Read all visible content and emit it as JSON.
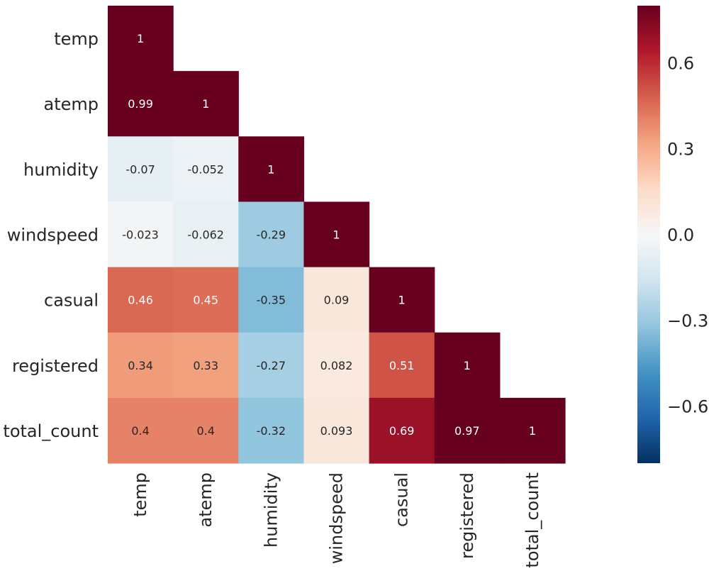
{
  "chart_data": {
    "type": "heatmap",
    "title": "",
    "rows": [
      "temp",
      "atemp",
      "humidity",
      "windspeed",
      "casual",
      "registered",
      "total_count"
    ],
    "columns": [
      "temp",
      "atemp",
      "humidity",
      "windspeed",
      "casual",
      "registered",
      "total_count"
    ],
    "mask": "upper-triangle",
    "values": [
      [
        1
      ],
      [
        0.99,
        1
      ],
      [
        -0.07,
        -0.052,
        1
      ],
      [
        -0.023,
        -0.062,
        -0.29,
        1
      ],
      [
        0.46,
        0.45,
        -0.35,
        0.09,
        1
      ],
      [
        0.34,
        0.33,
        -0.27,
        0.082,
        0.51,
        1
      ],
      [
        0.4,
        0.4,
        -0.32,
        0.093,
        0.69,
        0.97,
        1
      ]
    ],
    "labels": [
      [
        "1"
      ],
      [
        "0.99",
        "1"
      ],
      [
        "-0.07",
        "-0.052",
        "1"
      ],
      [
        "-0.023",
        "-0.062",
        "-0.29",
        "1"
      ],
      [
        "0.46",
        "0.45",
        "-0.35",
        "0.09",
        "1"
      ],
      [
        "0.34",
        "0.33",
        "-0.27",
        "0.082",
        "0.51",
        "1"
      ],
      [
        "0.4",
        "0.4",
        "-0.32",
        "0.093",
        "0.69",
        "0.97",
        "1"
      ]
    ],
    "vmin": -0.8,
    "vmax": 0.8,
    "colormap": [
      "#053061",
      "#2166ac",
      "#4393c3",
      "#92c5de",
      "#d1e5f0",
      "#f7f7f7",
      "#fddbc7",
      "#f4a582",
      "#d6604d",
      "#b2182b",
      "#67001f"
    ],
    "colorbar": {
      "ticks": [
        0.6,
        0.3,
        0.0,
        -0.3,
        -0.6
      ],
      "tick_labels": [
        "0.6",
        "0.3",
        "0.0",
        "−0.3",
        "−0.6"
      ],
      "position": "right"
    }
  }
}
